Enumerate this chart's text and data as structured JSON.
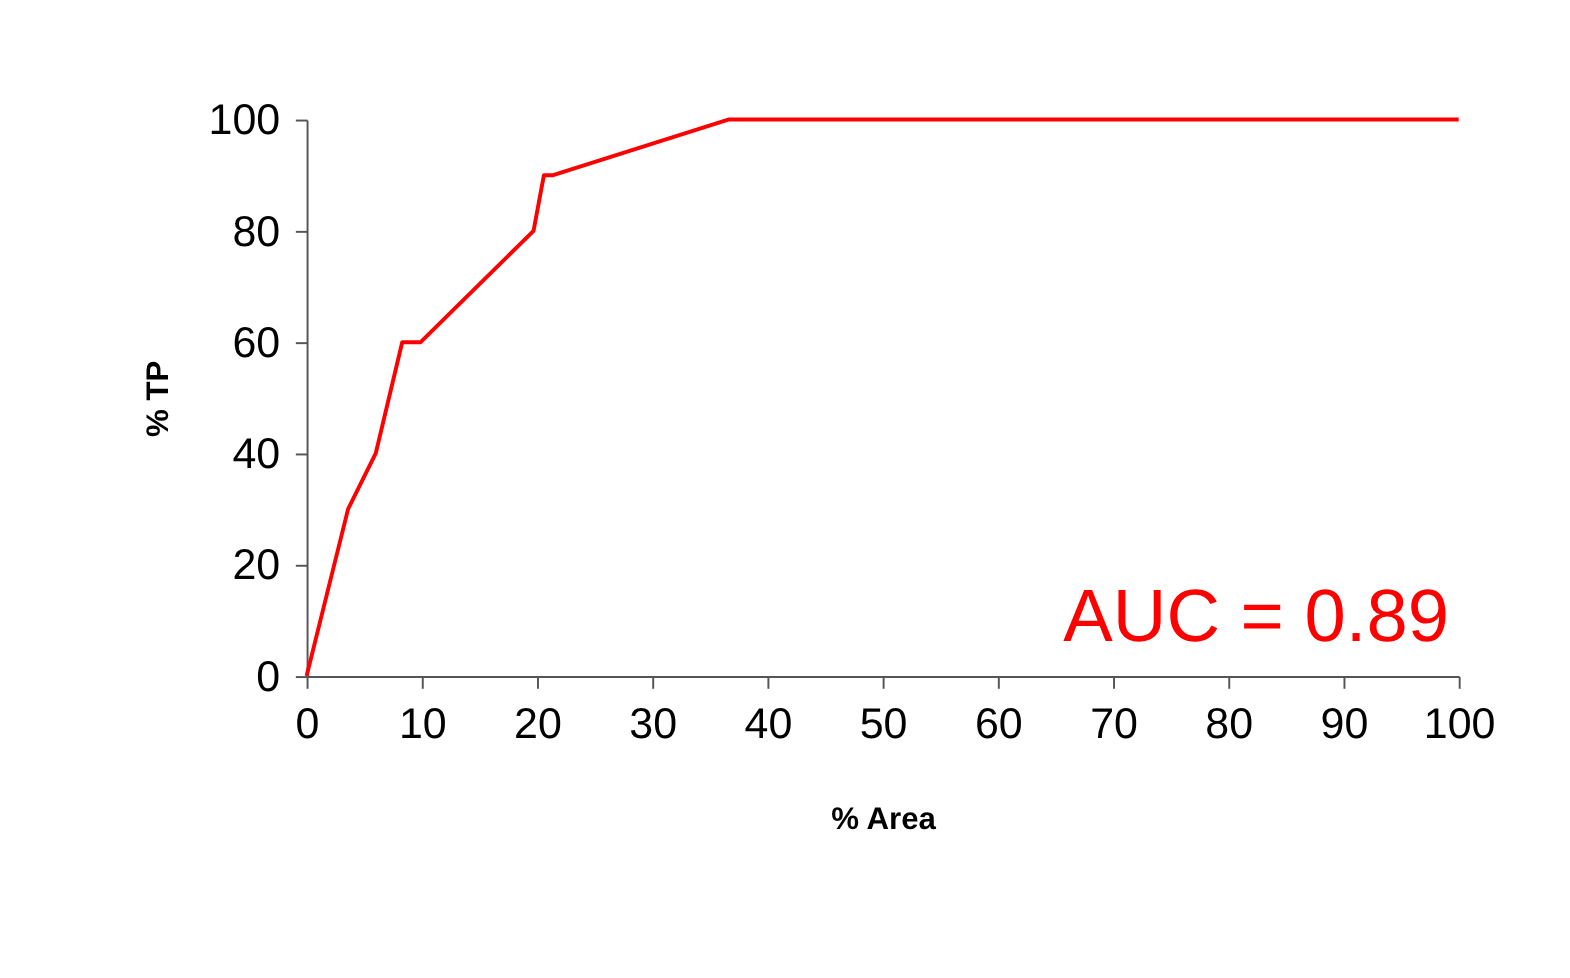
{
  "chart_data": {
    "type": "line",
    "xlabel": "% Area",
    "ylabel": "% TP",
    "x": [
      0,
      3.6,
      6,
      8.3,
      9.9,
      19.7,
      20.6,
      21.4,
      36.6,
      100
    ],
    "series": [
      {
        "color": "#ff0000",
        "values": [
          0,
          30,
          40,
          60,
          60,
          80,
          90,
          90,
          100,
          100
        ]
      }
    ],
    "xlim": [
      0,
      100
    ],
    "xticks": [
      0,
      10,
      20,
      30,
      40,
      50,
      60,
      70,
      80,
      90,
      100
    ],
    "ylim": [
      0,
      100
    ],
    "yticks": [
      0,
      20,
      40,
      60,
      80,
      100
    ],
    "annotations": [
      "AUC = 0.89"
    ],
    "grid": false,
    "legend": false,
    "marker": "none",
    "line_style": "solid"
  }
}
